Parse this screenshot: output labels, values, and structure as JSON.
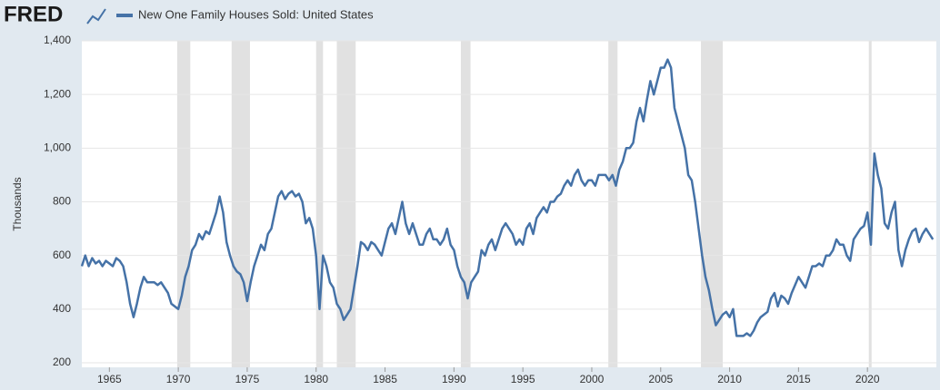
{
  "chart_data": {
    "type": "line",
    "logo": "FRED",
    "ylabel": "Thousands",
    "series": [
      {
        "name": "New One Family Houses Sold: United States",
        "color": "#4572a7",
        "values": [
          560,
          600,
          560,
          590,
          570,
          580,
          560,
          580,
          570,
          560,
          590,
          580,
          560,
          500,
          420,
          370,
          420,
          480,
          520,
          500,
          500,
          500,
          490,
          500,
          480,
          460,
          420,
          410,
          400,
          450,
          520,
          560,
          620,
          640,
          680,
          660,
          690,
          680,
          720,
          760,
          820,
          760,
          650,
          600,
          560,
          540,
          530,
          500,
          430,
          500,
          560,
          600,
          640,
          620,
          680,
          700,
          760,
          820,
          840,
          810,
          830,
          840,
          820,
          830,
          800,
          720,
          740,
          700,
          600,
          400,
          600,
          560,
          500,
          480,
          420,
          400,
          360,
          380,
          400,
          480,
          560,
          650,
          640,
          620,
          650,
          640,
          620,
          600,
          650,
          700,
          720,
          680,
          740,
          800,
          720,
          680,
          720,
          680,
          640,
          640,
          680,
          700,
          660,
          660,
          640,
          660,
          700,
          640,
          620,
          560,
          520,
          500,
          440,
          500,
          520,
          540,
          620,
          600,
          640,
          660,
          620,
          660,
          700,
          720,
          700,
          680,
          640,
          660,
          640,
          700,
          720,
          680,
          740,
          760,
          780,
          760,
          800,
          800,
          820,
          830,
          860,
          880,
          860,
          900,
          920,
          880,
          860,
          880,
          880,
          860,
          900,
          900,
          900,
          880,
          900,
          860,
          920,
          950,
          1000,
          1000,
          1020,
          1100,
          1150,
          1100,
          1180,
          1250,
          1200,
          1250,
          1300,
          1300,
          1330,
          1300,
          1150,
          1100,
          1050,
          1000,
          900,
          880,
          800,
          700,
          600,
          520,
          470,
          400,
          340,
          360,
          380,
          390,
          370,
          400,
          300,
          300,
          300,
          310,
          300,
          320,
          350,
          370,
          380,
          390,
          440,
          460,
          410,
          450,
          440,
          420,
          460,
          490,
          520,
          500,
          480,
          520,
          560,
          560,
          570,
          560,
          600,
          600,
          620,
          660,
          640,
          640,
          600,
          580,
          660,
          680,
          700,
          710,
          760,
          640,
          980,
          900,
          850,
          720,
          700,
          760,
          800,
          620,
          560,
          620,
          660,
          690,
          700,
          650,
          680,
          700,
          680,
          660
        ]
      }
    ],
    "x": [
      1963,
      1963.25,
      1963.5,
      1963.75,
      1964,
      1964.25,
      1964.5,
      1964.75,
      1965,
      1965.25,
      1965.5,
      1965.75,
      1966,
      1966.25,
      1966.5,
      1966.75,
      1967,
      1967.25,
      1967.5,
      1967.75,
      1968,
      1968.25,
      1968.5,
      1968.75,
      1969,
      1969.25,
      1969.5,
      1969.75,
      1970,
      1970.25,
      1970.5,
      1970.75,
      1971,
      1971.25,
      1971.5,
      1971.75,
      1972,
      1972.25,
      1972.5,
      1972.75,
      1973,
      1973.25,
      1973.5,
      1973.75,
      1974,
      1974.25,
      1974.5,
      1974.75,
      1975,
      1975.25,
      1975.5,
      1975.75,
      1976,
      1976.25,
      1976.5,
      1976.75,
      1977,
      1977.25,
      1977.5,
      1977.75,
      1978,
      1978.25,
      1978.5,
      1978.75,
      1979,
      1979.25,
      1979.5,
      1979.75,
      1980,
      1980.25,
      1980.5,
      1980.75,
      1981,
      1981.25,
      1981.5,
      1981.75,
      1982,
      1982.25,
      1982.5,
      1982.75,
      1983,
      1983.25,
      1983.5,
      1983.75,
      1984,
      1984.25,
      1984.5,
      1984.75,
      1985,
      1985.25,
      1985.5,
      1985.75,
      1986,
      1986.25,
      1986.5,
      1986.75,
      1987,
      1987.25,
      1987.5,
      1987.75,
      1988,
      1988.25,
      1988.5,
      1988.75,
      1989,
      1989.25,
      1989.5,
      1989.75,
      1990,
      1990.25,
      1990.5,
      1990.75,
      1991,
      1991.25,
      1991.5,
      1991.75,
      1992,
      1992.25,
      1992.5,
      1992.75,
      1993,
      1993.25,
      1993.5,
      1993.75,
      1994,
      1994.25,
      1994.5,
      1994.75,
      1995,
      1995.25,
      1995.5,
      1995.75,
      1996,
      1996.25,
      1996.5,
      1996.75,
      1997,
      1997.25,
      1997.5,
      1997.75,
      1998,
      1998.25,
      1998.5,
      1998.75,
      1999,
      1999.25,
      1999.5,
      1999.75,
      2000,
      2000.25,
      2000.5,
      2000.75,
      2001,
      2001.25,
      2001.5,
      2001.75,
      2002,
      2002.25,
      2002.5,
      2002.75,
      2003,
      2003.25,
      2003.5,
      2003.75,
      2004,
      2004.25,
      2004.5,
      2004.75,
      2005,
      2005.25,
      2005.5,
      2005.75,
      2006,
      2006.25,
      2006.5,
      2006.75,
      2007,
      2007.25,
      2007.5,
      2007.75,
      2008,
      2008.25,
      2008.5,
      2008.75,
      2009,
      2009.25,
      2009.5,
      2009.75,
      2010,
      2010.25,
      2010.5,
      2010.75,
      2011,
      2011.25,
      2011.5,
      2011.75,
      2012,
      2012.25,
      2012.5,
      2012.75,
      2013,
      2013.25,
      2013.5,
      2013.75,
      2014,
      2014.25,
      2014.5,
      2014.75,
      2015,
      2015.25,
      2015.5,
      2015.75,
      2016,
      2016.25,
      2016.5,
      2016.75,
      2017,
      2017.25,
      2017.5,
      2017.75,
      2018,
      2018.25,
      2018.5,
      2018.75,
      2019,
      2019.25,
      2019.5,
      2019.75,
      2020,
      2020.25,
      2020.5,
      2020.75,
      2021,
      2021.25,
      2021.5,
      2021.75,
      2022,
      2022.25,
      2022.5,
      2022.75,
      2023,
      2023.25,
      2023.5,
      2023.75,
      2024,
      2024.25,
      2024.5,
      2024.75
    ],
    "recessions": [
      [
        1969.92,
        1970.87
      ],
      [
        1973.87,
        1975.2
      ],
      [
        1980.0,
        1980.5
      ],
      [
        1981.5,
        1982.87
      ],
      [
        1990.5,
        1991.2
      ],
      [
        2001.2,
        2001.87
      ],
      [
        2007.92,
        2009.5
      ],
      [
        2020.1,
        2020.3
      ]
    ],
    "recession_color": "#e1e1e1",
    "xlim": [
      1963,
      2025
    ],
    "xticks": [
      1965,
      1970,
      1975,
      1980,
      1985,
      1990,
      1995,
      2000,
      2005,
      2010,
      2015,
      2020
    ],
    "ylim": [
      200,
      1400
    ],
    "yticks": [
      200,
      400,
      600,
      800,
      {
        "value": 1000,
        "label": "1,000"
      },
      {
        "value": 1200,
        "label": "1,200"
      },
      {
        "value": 1400,
        "label": "1,400"
      }
    ],
    "grid": true
  }
}
